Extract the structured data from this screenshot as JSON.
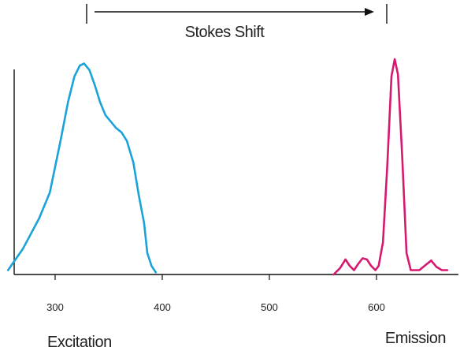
{
  "chart_data": {
    "type": "line",
    "title": "",
    "xlabel": "",
    "ylabel": "",
    "xlim": [
      255,
      660
    ],
    "ylim": [
      0,
      1
    ],
    "x_ticks": [
      300,
      400,
      500,
      600
    ],
    "x_tick_labels": [
      "300",
      "400",
      "500",
      "600"
    ],
    "grid": false,
    "legend": "none",
    "series": [
      {
        "label_text": "Excitation",
        "color": "#1aa3d9",
        "points": [
          [
            256,
            0.02
          ],
          [
            270,
            0.12
          ],
          [
            285,
            0.26
          ],
          [
            295,
            0.38
          ],
          [
            305,
            0.62
          ],
          [
            312,
            0.8
          ],
          [
            318,
            0.92
          ],
          [
            323,
            0.97
          ],
          [
            327,
            0.98
          ],
          [
            332,
            0.95
          ],
          [
            337,
            0.88
          ],
          [
            342,
            0.8
          ],
          [
            347,
            0.74
          ],
          [
            352,
            0.71
          ],
          [
            357,
            0.68
          ],
          [
            362,
            0.66
          ],
          [
            367,
            0.62
          ],
          [
            373,
            0.52
          ],
          [
            378,
            0.37
          ],
          [
            383,
            0.24
          ],
          [
            386,
            0.1
          ],
          [
            390,
            0.04
          ],
          [
            394,
            0.01
          ]
        ]
      },
      {
        "label_text": "Emission",
        "color": "#d6196e",
        "points": [
          [
            560,
            0.0
          ],
          [
            566,
            0.03
          ],
          [
            571,
            0.07
          ],
          [
            575,
            0.04
          ],
          [
            579,
            0.02
          ],
          [
            583,
            0.05
          ],
          [
            587,
            0.075
          ],
          [
            591,
            0.07
          ],
          [
            595,
            0.04
          ],
          [
            599,
            0.02
          ],
          [
            602,
            0.04
          ],
          [
            606,
            0.15
          ],
          [
            610,
            0.5
          ],
          [
            614,
            0.92
          ],
          [
            617,
            1.0
          ],
          [
            620,
            0.93
          ],
          [
            624,
            0.55
          ],
          [
            628,
            0.1
          ],
          [
            632,
            0.02
          ],
          [
            640,
            0.02
          ],
          [
            646,
            0.045
          ],
          [
            651,
            0.065
          ],
          [
            656,
            0.035
          ],
          [
            661,
            0.02
          ],
          [
            666,
            0.02
          ]
        ]
      }
    ],
    "annotations": {
      "shift_label": "Stokes Shift",
      "shift_from": 330,
      "shift_to": 610
    }
  }
}
